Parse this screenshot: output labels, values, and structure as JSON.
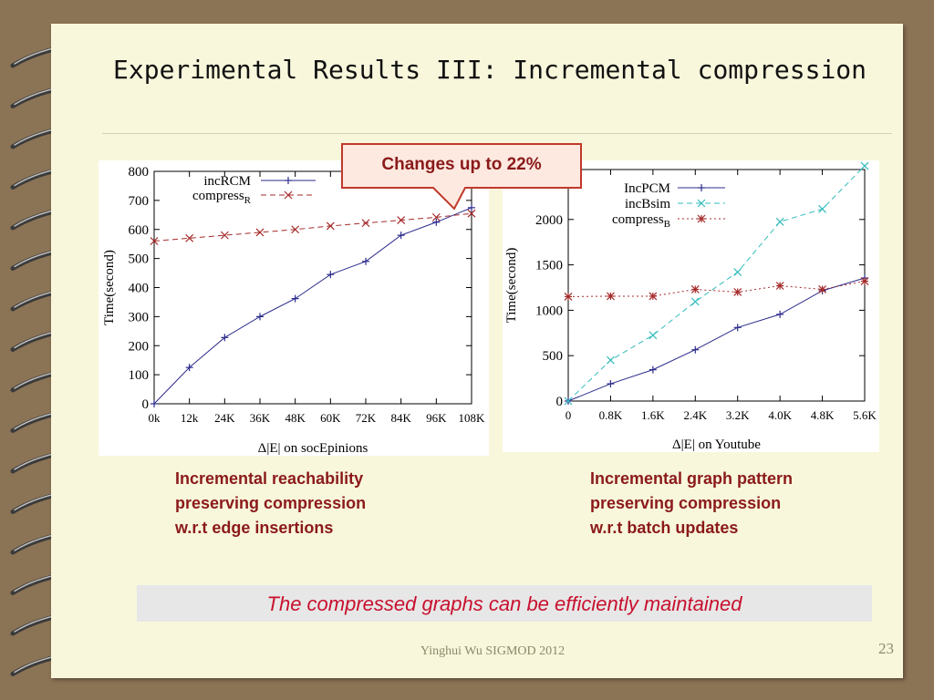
{
  "slide": {
    "title": "Experimental Results III: Incremental compression",
    "callout": "Changes up to 22%",
    "caption_left": [
      "Incremental reachability",
      "preserving compression",
      "w.r.t edge insertions"
    ],
    "caption_right": [
      "Incremental graph pattern",
      "preserving compression",
      "w.r.t batch updates"
    ],
    "conclusion": "The compressed graphs can be efficiently maintained",
    "footer": "Yinghui Wu SIGMOD 2012",
    "page_number": "23"
  },
  "colors": {
    "page_background": "#f8f7dc",
    "frame": "#8b7355",
    "caption_text": "#8b1a1a",
    "conclusion_text": "#c8102e",
    "series_blue": "#2b2b8c",
    "series_red": "#a52a2a",
    "series_cyan": "#33bbbb"
  },
  "chart_data": [
    {
      "type": "line",
      "xlabel": "Δ|E| on socEpinions",
      "ylabel": "Time(second)",
      "x_tick_labels": [
        "0k",
        "12k",
        "24K",
        "36K",
        "48K",
        "60K",
        "72K",
        "84K",
        "96K",
        "108K"
      ],
      "y_ticks": [
        0,
        100,
        200,
        300,
        400,
        500,
        600,
        700,
        800
      ],
      "ylim": [
        0,
        800
      ],
      "legend": "top-left",
      "series": [
        {
          "name": "incRCM",
          "marker": "+",
          "style": "solid",
          "color": "#2b2b8c",
          "values": [
            0,
            125,
            228,
            300,
            362,
            445,
            490,
            580,
            625,
            675
          ]
        },
        {
          "name": "compress",
          "name_subscript": "R",
          "marker": "x",
          "style": "dashed",
          "color": "#a52a2a",
          "values": [
            560,
            570,
            580,
            590,
            600,
            612,
            622,
            632,
            642,
            655
          ]
        }
      ]
    },
    {
      "type": "line",
      "xlabel": "Δ|E| on Youtube",
      "ylabel": "Time(second)",
      "x_tick_labels": [
        "0",
        "0.8K",
        "1.6K",
        "2.4K",
        "3.2K",
        "4.0K",
        "4.8K",
        "5.6K"
      ],
      "y_ticks": [
        0,
        500,
        1000,
        1500,
        2000
      ],
      "ylim": [
        0,
        2550
      ],
      "legend": "top-left",
      "series": [
        {
          "name": "IncPCM",
          "marker": "+",
          "style": "solid",
          "color": "#2b2b8c",
          "values": [
            0,
            190,
            345,
            565,
            810,
            955,
            1215,
            1355
          ]
        },
        {
          "name": "incBsim",
          "marker": "x",
          "style": "dashed",
          "color": "#33bbbb",
          "values": [
            0,
            450,
            725,
            1095,
            1420,
            1975,
            2115,
            2590
          ]
        },
        {
          "name": "compress",
          "name_subscript": "B",
          "marker": "*",
          "style": "dotted",
          "color": "#a52a2a",
          "values": [
            1150,
            1155,
            1155,
            1230,
            1200,
            1270,
            1230,
            1320
          ]
        }
      ]
    }
  ]
}
